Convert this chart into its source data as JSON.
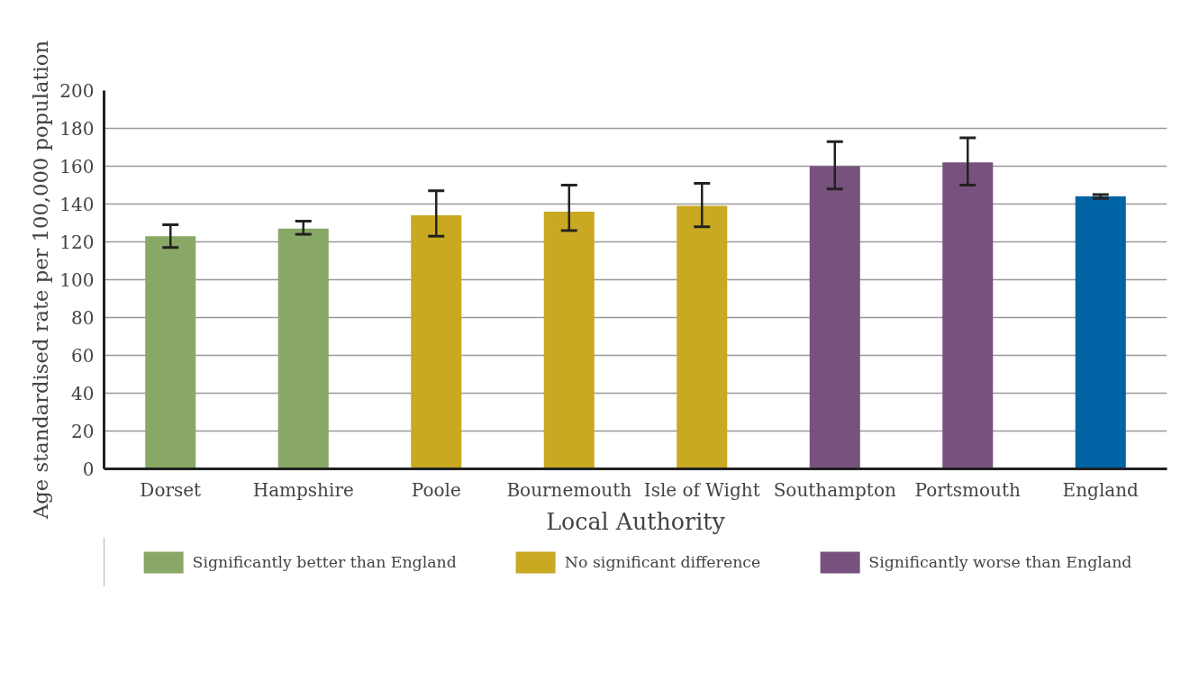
{
  "chart_data": {
    "type": "bar",
    "xlabel": "Local Authority",
    "ylabel": "Age standardised rate per 100,000 population",
    "categories": [
      "Dorset",
      "Hampshire",
      "Poole",
      "Bournemouth",
      "Isle of Wight",
      "Southampton",
      "Portsmouth",
      "England"
    ],
    "series": [
      {
        "name": "Significantly better than England",
        "color": "#8aa865",
        "values": [
          123,
          127,
          null,
          null,
          null,
          null,
          null,
          null
        ],
        "errors": [
          [
            117,
            129
          ],
          [
            124,
            131
          ],
          null,
          null,
          null,
          null,
          null,
          null
        ]
      },
      {
        "name": "No significant difference",
        "color": "#c9a822",
        "values": [
          null,
          null,
          134,
          136,
          139,
          null,
          null,
          null
        ],
        "errors": [
          null,
          null,
          [
            123,
            147
          ],
          [
            126,
            150
          ],
          [
            128,
            151
          ],
          null,
          null,
          null
        ]
      },
      {
        "name": "Significantly worse than England",
        "color": "#77527e",
        "values": [
          null,
          null,
          null,
          null,
          null,
          160,
          162,
          null
        ],
        "errors": [
          null,
          null,
          null,
          null,
          null,
          [
            148,
            173
          ],
          [
            150,
            175
          ],
          null
        ]
      },
      {
        "color": "#0063a3",
        "values": [
          null,
          null,
          null,
          null,
          null,
          null,
          null,
          144
        ],
        "errors": [
          null,
          null,
          null,
          null,
          null,
          null,
          null,
          [
            143,
            145
          ]
        ]
      }
    ],
    "ylim": [
      0,
      200
    ],
    "yticks": [
      0,
      20,
      40,
      60,
      80,
      100,
      120,
      140,
      160,
      180,
      200
    ],
    "grid": "y",
    "legend": "bottom"
  }
}
